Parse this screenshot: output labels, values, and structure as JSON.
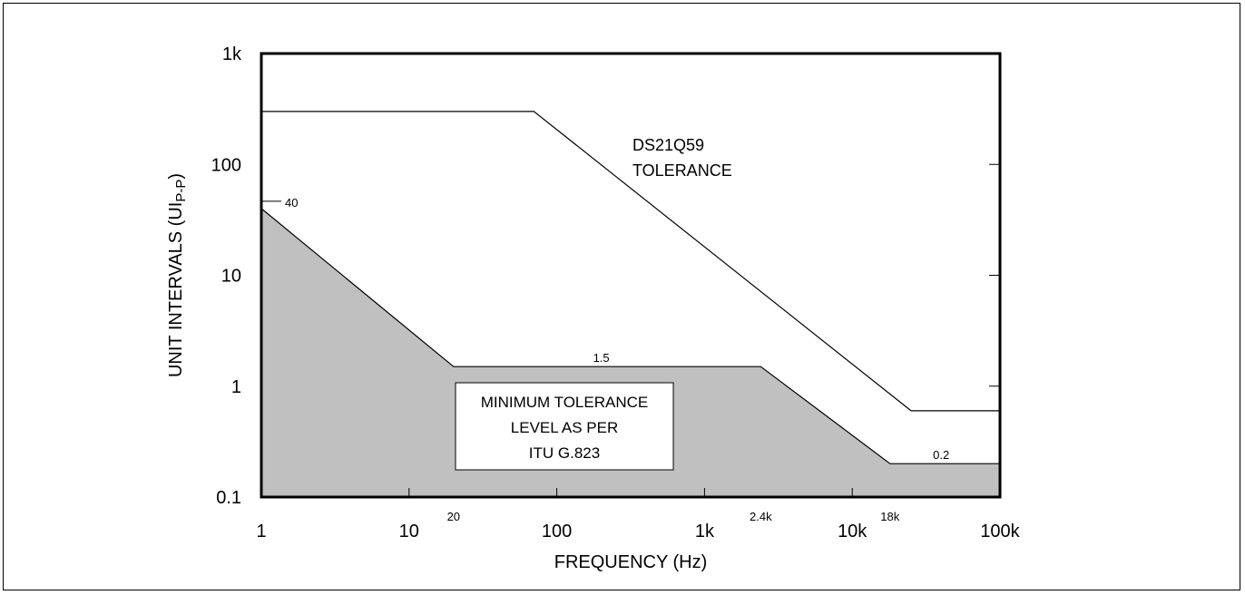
{
  "chart_data": {
    "type": "area",
    "x_scale": "log",
    "y_scale": "log",
    "xlabel": "FREQUENCY (Hz)",
    "ylabel": {
      "main": "UNIT INTERVALS (UI",
      "sub": "P-P",
      "close": ")"
    },
    "xlim": [
      1,
      100000
    ],
    "ylim": [
      0.1,
      1000
    ],
    "x_ticks": [
      {
        "label": "1",
        "value": 1
      },
      {
        "label": "10",
        "value": 10
      },
      {
        "label": "100",
        "value": 100
      },
      {
        "label": "1k",
        "value": 1000
      },
      {
        "label": "10k",
        "value": 10000
      },
      {
        "label": "100k",
        "value": 100000
      }
    ],
    "x_minor_labels": [
      {
        "label": "20",
        "value": 20
      },
      {
        "label": "2.4k",
        "value": 2400
      },
      {
        "label": "18k",
        "value": 18000
      }
    ],
    "y_ticks": [
      {
        "label": "0.1",
        "value": 0.1
      },
      {
        "label": "1",
        "value": 1
      },
      {
        "label": "10",
        "value": 10
      },
      {
        "label": "100",
        "value": 100
      },
      {
        "label": "1k",
        "value": 1000
      }
    ],
    "series": [
      {
        "name": "DS21Q59 TOLERANCE",
        "kind": "line",
        "points": [
          [
            1,
            300
          ],
          [
            70,
            300
          ],
          [
            25000,
            0.6
          ],
          [
            100000,
            0.6
          ]
        ]
      },
      {
        "name": "MINIMUM TOLERANCE LEVEL AS PER ITU G.823",
        "kind": "area",
        "color": "#c0c0c0",
        "points": [
          [
            1,
            40
          ],
          [
            20,
            1.5
          ],
          [
            2400,
            1.5
          ],
          [
            18000,
            0.2
          ],
          [
            100000,
            0.2
          ]
        ]
      }
    ],
    "annotations": [
      {
        "text": "40",
        "x": 1,
        "y": 40
      },
      {
        "text": "1.5",
        "x": 200,
        "y": 1.5
      },
      {
        "text": "0.2",
        "x": 40000,
        "y": 0.2
      }
    ],
    "series_label": [
      "DS21Q59",
      "TOLERANCE"
    ],
    "area_label": [
      "MINIMUM TOLERANCE",
      "LEVEL AS PER",
      "ITU G.823"
    ],
    "grid": false
  }
}
